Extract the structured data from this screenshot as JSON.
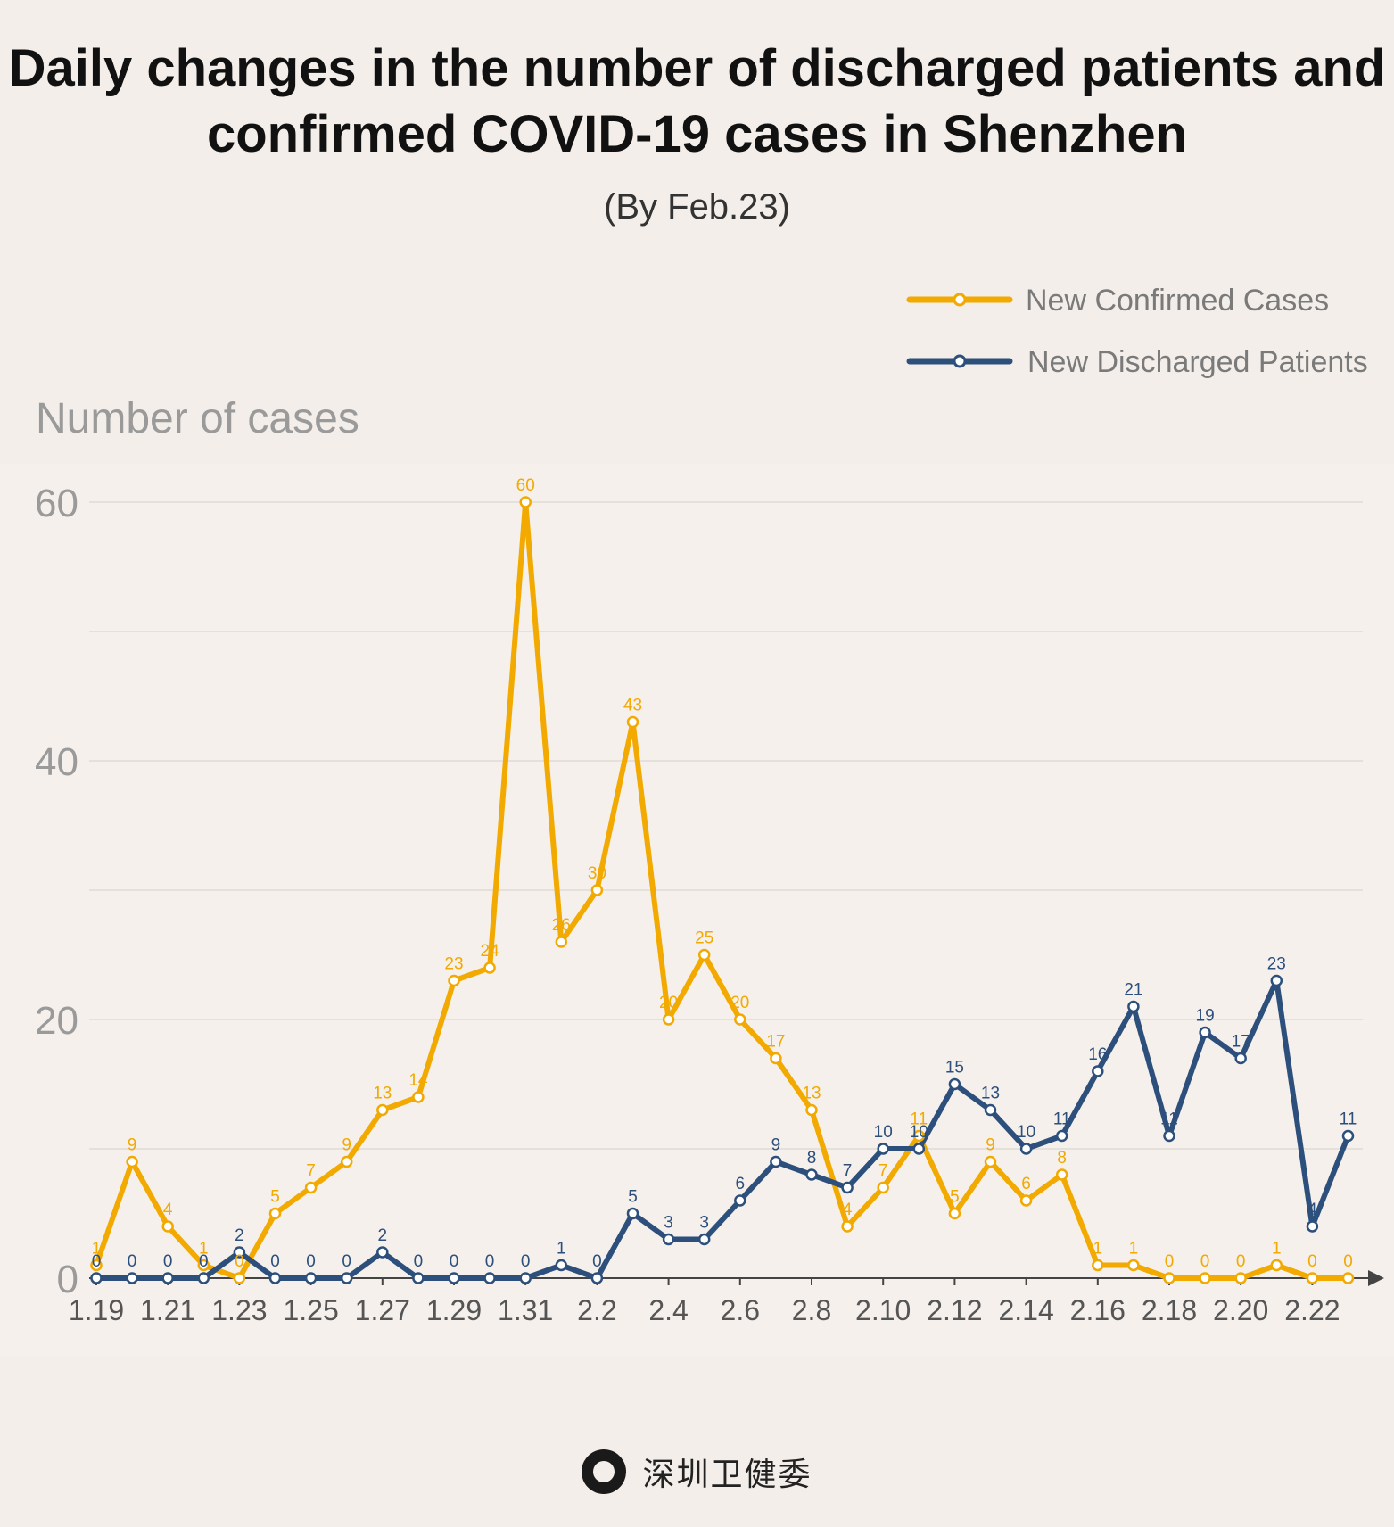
{
  "title_line1": "Daily changes in the number of discharged patients and",
  "title_line2": "confirmed COVID-19 cases in Shenzhen",
  "subtitle": "(By Feb.23)",
  "footer_text": "深圳卫健委",
  "chart_data": {
    "type": "line",
    "ylabel": "Number of cases",
    "ylim": [
      0,
      60
    ],
    "yticks": [
      0,
      20,
      40,
      60
    ],
    "grid": true,
    "legend_position": "top-right",
    "x": [
      "1.19",
      "1.20",
      "1.21",
      "1.22",
      "1.23",
      "1.24",
      "1.25",
      "1.26",
      "1.27",
      "1.28",
      "1.29",
      "1.30",
      "1.31",
      "2.1",
      "2.2",
      "2.3",
      "2.4",
      "2.5",
      "2.6",
      "2.7",
      "2.8",
      "2.9",
      "2.10",
      "2.11",
      "2.12",
      "2.13",
      "2.14",
      "2.15",
      "2.16",
      "2.17",
      "2.18",
      "2.19",
      "2.20",
      "2.21",
      "2.22",
      "2.23"
    ],
    "xtick_labels": [
      "1.19",
      "1.21",
      "1.23",
      "1.25",
      "1.27",
      "1.29",
      "1.31",
      "2.2",
      "2.4",
      "2.6",
      "2.8",
      "2.10",
      "2.12",
      "2.14",
      "2.16",
      "2.18",
      "2.20",
      "2.22"
    ],
    "series": [
      {
        "name": "New Confirmed Cases",
        "color": "#f2a900",
        "values": [
          1,
          9,
          4,
          1,
          0,
          5,
          7,
          9,
          13,
          14,
          23,
          24,
          60,
          26,
          30,
          43,
          20,
          25,
          20,
          17,
          13,
          4,
          7,
          11,
          5,
          9,
          6,
          8,
          1,
          1,
          0,
          0,
          0,
          1,
          0,
          0
        ]
      },
      {
        "name": "New Discharged Patients",
        "color": "#2c4f7c",
        "values": [
          0,
          0,
          0,
          0,
          2,
          0,
          0,
          0,
          2,
          0,
          0,
          0,
          0,
          1,
          0,
          5,
          3,
          3,
          6,
          9,
          8,
          7,
          10,
          10,
          15,
          13,
          10,
          11,
          16,
          21,
          11,
          19,
          17,
          23,
          4,
          11
        ]
      }
    ]
  }
}
